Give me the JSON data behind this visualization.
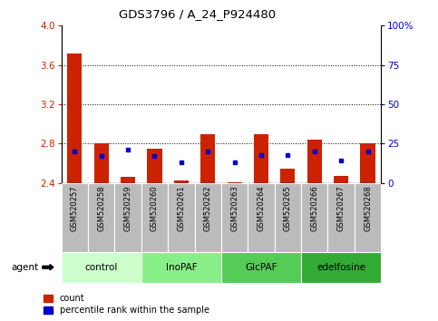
{
  "title": "GDS3796 / A_24_P924480",
  "samples": [
    "GSM520257",
    "GSM520258",
    "GSM520259",
    "GSM520260",
    "GSM520261",
    "GSM520262",
    "GSM520263",
    "GSM520264",
    "GSM520265",
    "GSM520266",
    "GSM520267",
    "GSM520268"
  ],
  "red_values": [
    3.72,
    2.8,
    2.46,
    2.75,
    2.43,
    2.9,
    2.41,
    2.9,
    2.55,
    2.84,
    2.47,
    2.8
  ],
  "blue_values": [
    20,
    17,
    21,
    17,
    13,
    20,
    13,
    18,
    18,
    20,
    14,
    20
  ],
  "ylim_left": [
    2.4,
    4.0
  ],
  "ylim_right": [
    0,
    100
  ],
  "yticks_left": [
    2.4,
    2.8,
    3.2,
    3.6,
    4.0
  ],
  "yticks_right": [
    0,
    25,
    50,
    75,
    100
  ],
  "yticklabels_right": [
    "0",
    "25",
    "50",
    "75",
    "100%"
  ],
  "groups": [
    {
      "label": "control",
      "indices": [
        0,
        1,
        2
      ],
      "color": "#ccffcc"
    },
    {
      "label": "InoPAF",
      "indices": [
        3,
        4,
        5
      ],
      "color": "#88ee88"
    },
    {
      "label": "GlcPAF",
      "indices": [
        6,
        7,
        8
      ],
      "color": "#55cc55"
    },
    {
      "label": "edelfosine",
      "indices": [
        9,
        10,
        11
      ],
      "color": "#33aa33"
    }
  ],
  "bar_color": "#cc2200",
  "dot_color": "#0000cc",
  "bar_width": 0.55,
  "baseline": 2.4,
  "agent_label": "agent",
  "legend_count": "count",
  "legend_percentile": "percentile rank within the sample",
  "tick_color_left": "#cc2200",
  "tick_color_right": "#0000cc",
  "background_xaxis": "#bbbbbb"
}
